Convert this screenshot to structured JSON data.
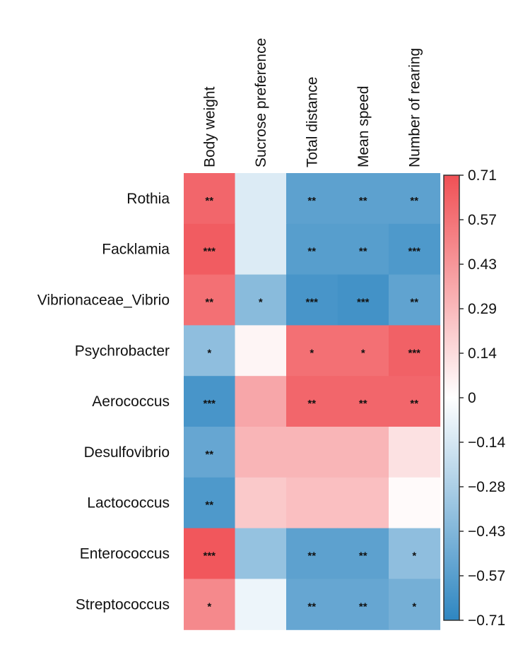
{
  "chart_data": {
    "type": "heatmap",
    "title": "",
    "rows": [
      "Rothia",
      "Facklamia",
      "Vibrionaceae_Vibrio",
      "Psychrobacter",
      "Aerococcus",
      "Desulfovibrio",
      "Lactococcus",
      "Enterococcus",
      "Streptococcus"
    ],
    "columns": [
      "Body weight",
      "Sucrose preference",
      "Total distance",
      "Mean speed",
      "Number of rearing"
    ],
    "values": [
      [
        0.62,
        -0.12,
        -0.55,
        -0.55,
        -0.55
      ],
      [
        0.66,
        -0.12,
        -0.57,
        -0.57,
        -0.6
      ],
      [
        0.58,
        -0.4,
        -0.62,
        -0.64,
        -0.54
      ],
      [
        -0.38,
        0.04,
        0.58,
        0.58,
        0.64
      ],
      [
        -0.62,
        0.36,
        0.62,
        0.62,
        0.62
      ],
      [
        -0.52,
        0.3,
        0.3,
        0.3,
        0.12
      ],
      [
        -0.6,
        0.22,
        0.26,
        0.26,
        0.02
      ],
      [
        0.68,
        -0.36,
        -0.55,
        -0.55,
        -0.38
      ],
      [
        0.48,
        -0.06,
        -0.52,
        -0.52,
        -0.47
      ]
    ],
    "significance": [
      [
        "**",
        "",
        "**",
        "**",
        "**"
      ],
      [
        "***",
        "",
        "**",
        "**",
        "***"
      ],
      [
        "**",
        "*",
        "***",
        "***",
        "**"
      ],
      [
        "*",
        "",
        "*",
        "*",
        "***"
      ],
      [
        "***",
        "",
        "**",
        "**",
        "**"
      ],
      [
        "**",
        "",
        "",
        "",
        ""
      ],
      [
        "**",
        "",
        "",
        "",
        ""
      ],
      [
        "***",
        "",
        "**",
        "**",
        "*"
      ],
      [
        "*",
        "",
        "**",
        "**",
        "*"
      ]
    ],
    "colorbar": {
      "range": [
        -0.71,
        0.71
      ],
      "ticks": [
        "0.71",
        "0.57",
        "0.43",
        "0.29",
        "0.14",
        "0",
        "−0.14",
        "−0.28",
        "−0.43",
        "−0.57",
        "−0.71"
      ],
      "low_color": "#2e86c1",
      "mid_color": "#ffffff",
      "high_color": "#f05055"
    }
  }
}
